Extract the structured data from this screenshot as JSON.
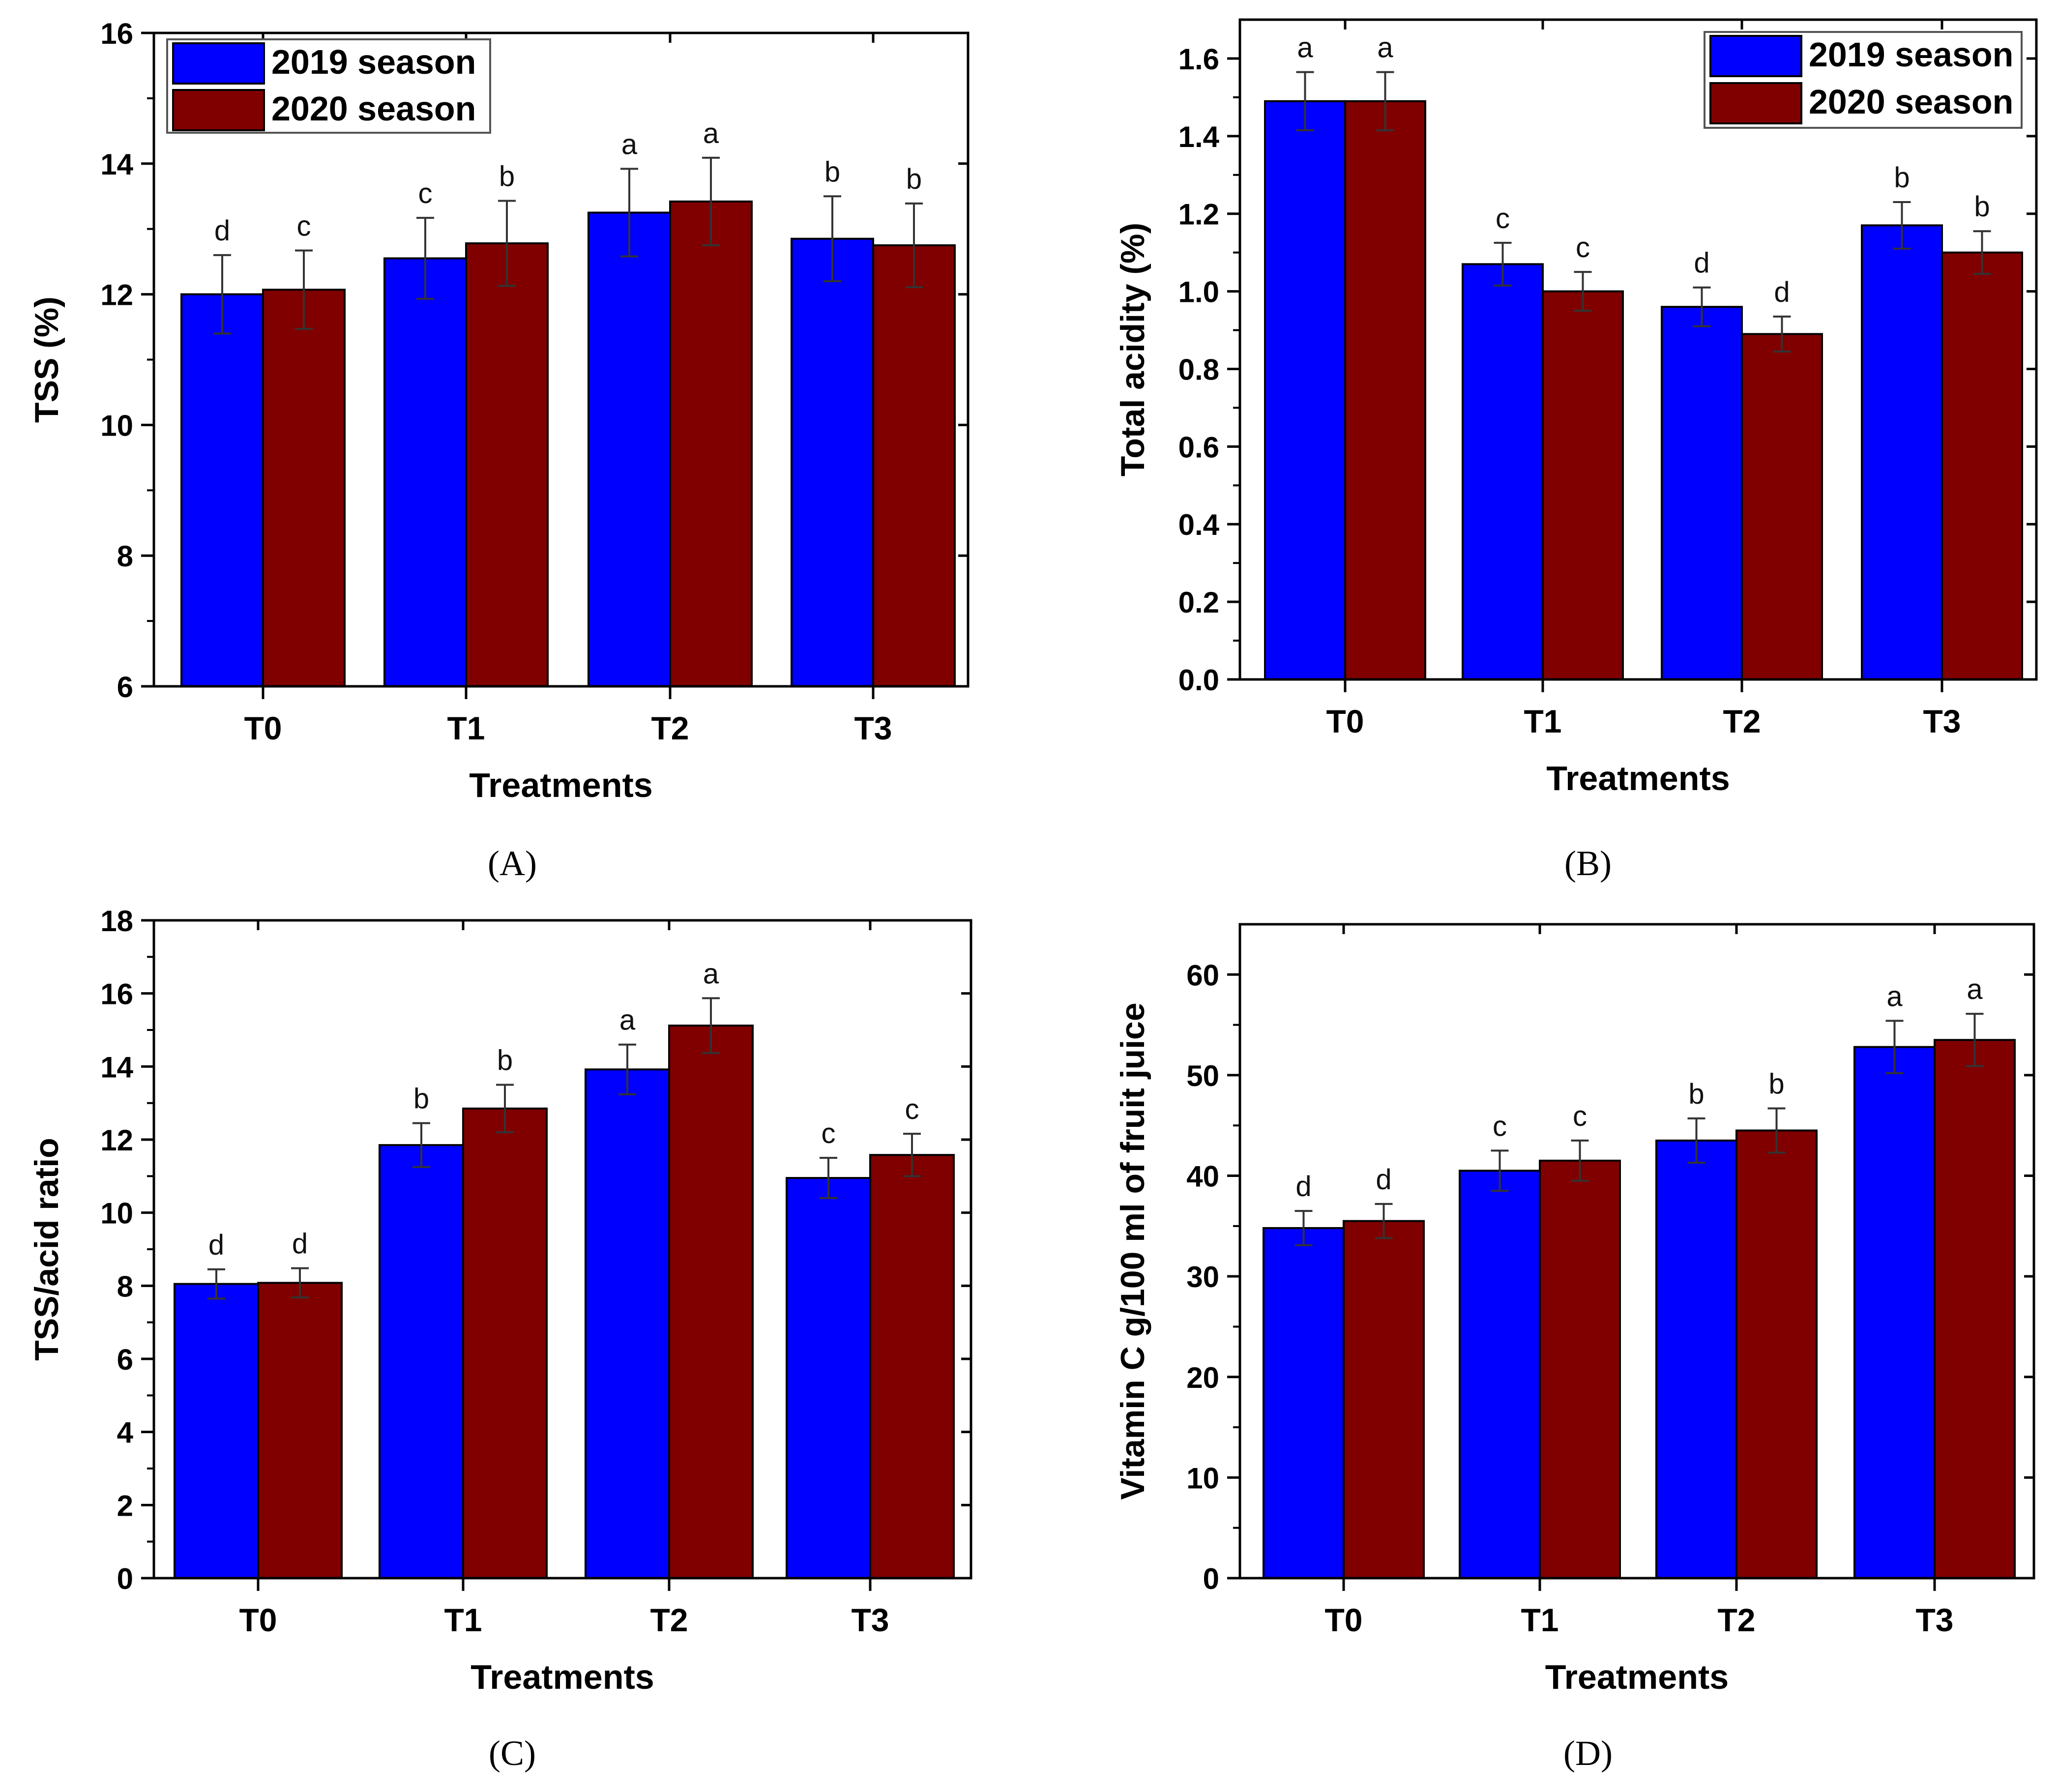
{
  "colors": {
    "series_2019": "#0000ff",
    "series_2020": "#800000",
    "axis": "#000000"
  },
  "chart_data": [
    {
      "panel": "A",
      "type": "bar",
      "categories": [
        "T0",
        "T1",
        "T2",
        "T3"
      ],
      "xlabel": "Treatments",
      "ylabel": "TSS (%)",
      "ylim": [
        6,
        16
      ],
      "yticks": [
        6,
        8,
        10,
        12,
        14,
        16
      ],
      "ytick_labels": [
        "6",
        "8",
        "10",
        "12",
        "14",
        "16"
      ],
      "legend": {
        "placement": "top-left"
      },
      "series": [
        {
          "name": "2019 season",
          "values": [
            12.0,
            12.55,
            13.25,
            12.85
          ],
          "errors": [
            0.6,
            0.62,
            0.67,
            0.65
          ],
          "letters": [
            "d",
            "c",
            "a",
            "b"
          ]
        },
        {
          "name": "2020 season",
          "values": [
            12.07,
            12.78,
            13.42,
            12.75
          ],
          "errors": [
            0.6,
            0.65,
            0.67,
            0.64
          ],
          "letters": [
            "c",
            "b",
            "a",
            "b"
          ]
        }
      ]
    },
    {
      "panel": "B",
      "type": "bar",
      "categories": [
        "T0",
        "T1",
        "T2",
        "T3"
      ],
      "xlabel": "Treatments",
      "ylabel": "Total acidity (%)",
      "ylim": [
        0,
        1.7
      ],
      "yticks": [
        0,
        0.2,
        0.4,
        0.6,
        0.8,
        1.0,
        1.2,
        1.4,
        1.6
      ],
      "ytick_labels": [
        "0.0",
        "0.2",
        "0.4",
        "0.6",
        "0.8",
        "1.0",
        "1.2",
        "1.4",
        "1.6"
      ],
      "legend": {
        "placement": "top-right"
      },
      "series": [
        {
          "name": "2019 season",
          "values": [
            1.49,
            1.07,
            0.96,
            1.17
          ],
          "errors": [
            0.075,
            0.055,
            0.05,
            0.06
          ],
          "letters": [
            "a",
            "c",
            "d",
            "b"
          ]
        },
        {
          "name": "2020 season",
          "values": [
            1.49,
            1.0,
            0.89,
            1.1
          ],
          "errors": [
            0.075,
            0.05,
            0.045,
            0.055
          ],
          "letters": [
            "a",
            "c",
            "d",
            "b"
          ]
        }
      ]
    },
    {
      "panel": "C",
      "type": "bar",
      "categories": [
        "T0",
        "T1",
        "T2",
        "T3"
      ],
      "xlabel": "Treatments",
      "ylabel": "TSS/acid ratio",
      "ylim": [
        0,
        18
      ],
      "yticks": [
        0,
        2,
        4,
        6,
        8,
        10,
        12,
        14,
        16,
        18
      ],
      "ytick_labels": [
        "0",
        "2",
        "4",
        "6",
        "8",
        "10",
        "12",
        "14",
        "16",
        "18"
      ],
      "series": [
        {
          "values": [
            8.05,
            11.85,
            13.92,
            10.95
          ],
          "errors": [
            0.4,
            0.6,
            0.68,
            0.55
          ],
          "letters": [
            "d",
            "b",
            "a",
            "c"
          ]
        },
        {
          "values": [
            8.08,
            12.85,
            15.12,
            11.58
          ],
          "errors": [
            0.4,
            0.65,
            0.75,
            0.58
          ],
          "letters": [
            "d",
            "b",
            "a",
            "c"
          ]
        }
      ]
    },
    {
      "panel": "D",
      "type": "bar",
      "categories": [
        "T0",
        "T1",
        "T2",
        "T3"
      ],
      "xlabel": "Treatments",
      "ylabel": "Vitamin C g/100 ml of fruit juice",
      "ylim": [
        0,
        65
      ],
      "yticks": [
        0,
        10,
        20,
        30,
        40,
        50,
        60
      ],
      "ytick_labels": [
        "0",
        "10",
        "20",
        "30",
        "40",
        "50",
        "60"
      ],
      "series": [
        {
          "values": [
            34.8,
            40.5,
            43.5,
            52.8
          ],
          "errors": [
            1.7,
            2.0,
            2.2,
            2.6
          ],
          "letters": [
            "d",
            "c",
            "b",
            "a"
          ]
        },
        {
          "values": [
            35.5,
            41.5,
            44.5,
            53.5
          ],
          "errors": [
            1.7,
            2.0,
            2.2,
            2.6
          ],
          "letters": [
            "d",
            "c",
            "b",
            "a"
          ]
        }
      ]
    }
  ],
  "captions": [
    "(A)",
    "(B)",
    "(C)",
    "(D)"
  ]
}
